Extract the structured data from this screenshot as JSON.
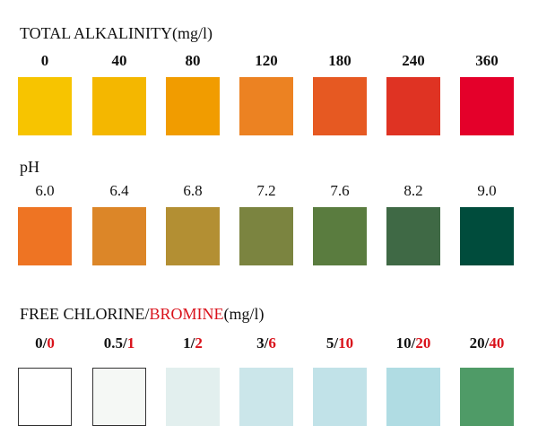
{
  "alkalinity": {
    "title": "TOTAL ALKALINITY(mg/l)",
    "labels": [
      "0",
      "40",
      "80",
      "120",
      "180",
      "240",
      "360"
    ],
    "colors": [
      "#f7c400",
      "#f4b700",
      "#f19c00",
      "#ec8222",
      "#e65922",
      "#df3323",
      "#e4002a"
    ]
  },
  "ph": {
    "title": "pH",
    "labels": [
      "6.0",
      "6.4",
      "6.8",
      "7.2",
      "7.6",
      "8.2",
      "9.0"
    ],
    "colors": [
      "#ee7423",
      "#dc8628",
      "#b38f33",
      "#7b8440",
      "#5a7c3f",
      "#3f6945",
      "#004c3c"
    ]
  },
  "chlorine": {
    "title_part1": "FREE CHLORINE/",
    "title_part2": "BROMINE",
    "title_part3": "(mg/l)",
    "chlorine_values": [
      "0",
      "0.5",
      "1",
      "3",
      "5",
      "10",
      "20"
    ],
    "bromine_values": [
      "0",
      "1",
      "2",
      "6",
      "10",
      "20",
      "40"
    ],
    "separator": "/",
    "colors": [
      "#ffffff",
      "#f5f8f5",
      "#e2efee",
      "#cbe6ea",
      "#c1e2e8",
      "#b0dce3",
      "#4f9b67"
    ],
    "accent_color": "#d9121b"
  }
}
